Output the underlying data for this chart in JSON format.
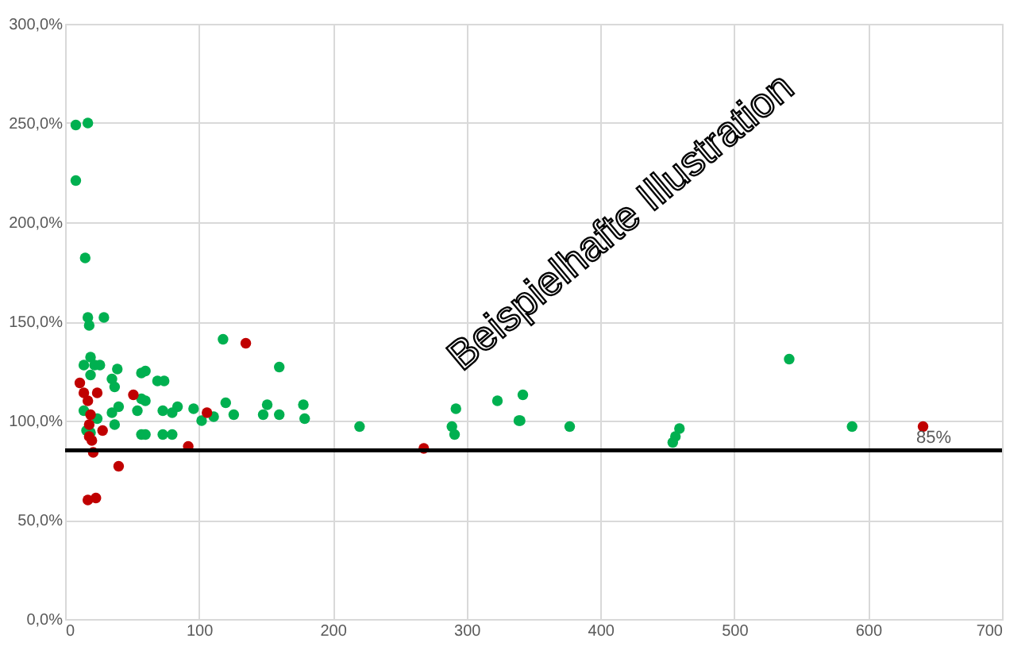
{
  "chart_data": {
    "type": "scatter",
    "marker": "circle",
    "grid": true,
    "legend": false,
    "xlim": [
      0,
      700
    ],
    "xticks": [
      0,
      100,
      200,
      300,
      400,
      500,
      600,
      700
    ],
    "ylim": [
      0,
      300
    ],
    "yticks": [
      {
        "value": 0,
        "label": "0,0%"
      },
      {
        "value": 50,
        "label": "50,0%"
      },
      {
        "value": 100,
        "label": "100,0%"
      },
      {
        "value": 150,
        "label": "150,0%"
      },
      {
        "value": 200,
        "label": "200,0%"
      },
      {
        "value": 250,
        "label": "250,0%"
      },
      {
        "value": 300,
        "label": "300,0%"
      }
    ],
    "series": [
      {
        "color": "#00b050",
        "x": [
          8,
          17,
          8,
          15,
          17,
          29,
          18,
          19,
          14,
          22,
          26,
          19,
          39,
          35,
          37,
          14,
          40,
          35,
          24,
          37,
          16,
          19,
          57,
          69,
          54,
          57,
          57,
          73,
          73,
          84,
          60,
          74,
          118,
          160,
          60,
          80,
          96,
          120,
          111,
          126,
          102,
          151,
          148,
          160,
          178,
          179,
          60,
          80,
          220,
          289,
          291,
          292,
          323,
          342,
          339,
          340,
          377,
          459,
          456,
          454,
          541,
          588
        ],
        "values": [
          249,
          250,
          221,
          182,
          152,
          152,
          148,
          132,
          128,
          128,
          128,
          123,
          126,
          121,
          117,
          105,
          107,
          104,
          101,
          98,
          95,
          94,
          124,
          120,
          105,
          111,
          93,
          105,
          93,
          107,
          125,
          120,
          141,
          127,
          110,
          104,
          106,
          109,
          102,
          103,
          100,
          108,
          103,
          103,
          108,
          101,
          93,
          93,
          97,
          97,
          93,
          106,
          110,
          113,
          100,
          100,
          97,
          96,
          92,
          89,
          131,
          97
        ]
      },
      {
        "color": "#c00000",
        "x": [
          11,
          14,
          24,
          17,
          19,
          18,
          18,
          20,
          21,
          28,
          51,
          40,
          17,
          23,
          92,
          106,
          135,
          268,
          641
        ],
        "values": [
          119,
          114,
          114,
          110,
          103,
          98,
          92,
          90,
          84,
          95,
          113,
          77,
          60,
          61,
          87,
          104,
          139,
          86,
          97
        ]
      }
    ],
    "ref_lines": [
      {
        "axis": "y",
        "value": 85,
        "label": "85%",
        "color": "#000000"
      }
    ],
    "annotations": [
      "Beispielhafte Illustration"
    ]
  }
}
